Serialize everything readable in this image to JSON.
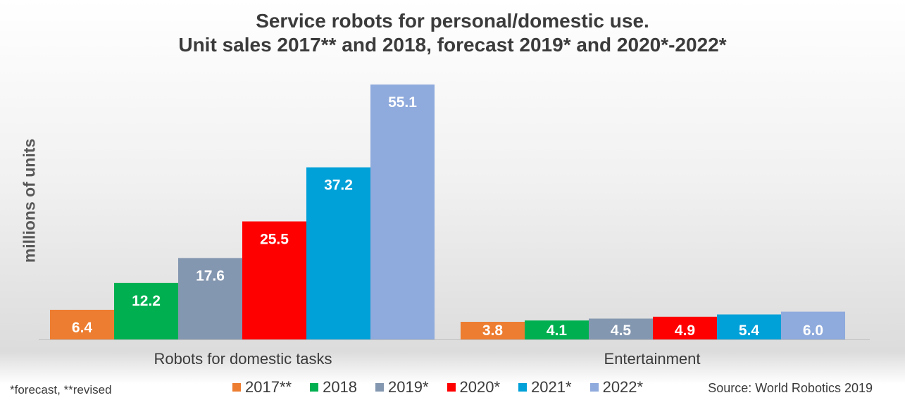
{
  "footnote": "*forecast, **revised",
  "source": "Source: World Robotics 2019",
  "chart_data": {
    "type": "bar",
    "title": "Service robots for personal/domestic use.",
    "subtitle": "Unit sales 2017** and 2018, forecast 2019* and 2020*-2022*",
    "xlabel": "",
    "ylabel": "millions of units",
    "categories": [
      "Robots for domestic tasks",
      "Entertainment"
    ],
    "series": [
      {
        "name": "2017**",
        "color": "#ed7d31",
        "values": [
          6.4,
          3.8
        ]
      },
      {
        "name": "2018",
        "color": "#00b050",
        "values": [
          12.2,
          4.1
        ]
      },
      {
        "name": "2019*",
        "color": "#8497b0",
        "values": [
          17.6,
          4.5
        ]
      },
      {
        "name": "2020*",
        "color": "#ff0000",
        "values": [
          25.5,
          4.9
        ]
      },
      {
        "name": "2021*",
        "color": "#00a0d8",
        "values": [
          37.2,
          5.4
        ]
      },
      {
        "name": "2022*",
        "color": "#8faadc",
        "values": [
          55.1,
          6.0
        ]
      }
    ],
    "data_labels": [
      [
        "6.4",
        "12.2",
        "17.6",
        "25.5",
        "37.2",
        "55.1"
      ],
      [
        "3.8",
        "4.1",
        "4.5",
        "4.9",
        "5.4",
        "6.0"
      ]
    ],
    "ylim": [
      0,
      55.1
    ],
    "grid": false,
    "legend_position": "bottom"
  }
}
